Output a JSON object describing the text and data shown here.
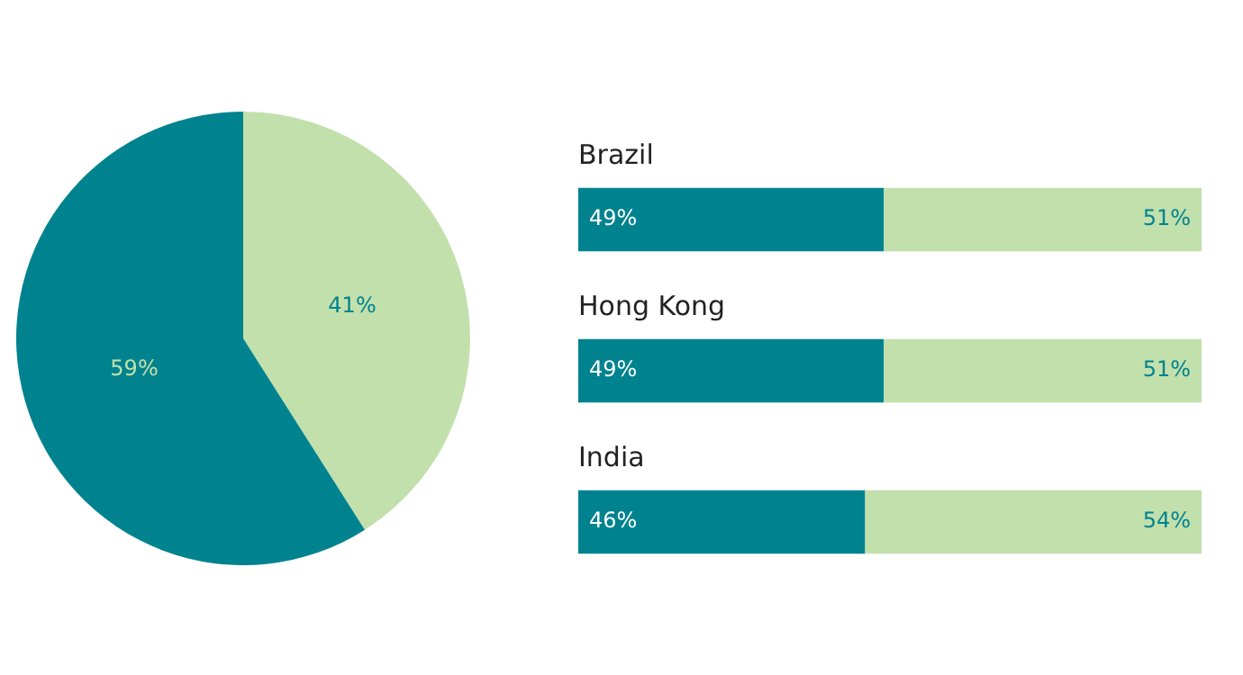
{
  "chart_data": [
    {
      "type": "pie",
      "categories": [
        null,
        null
      ],
      "values": [
        41,
        59
      ],
      "colors": [
        "#c2e0ac",
        "#00838f"
      ],
      "value_labels": [
        "41%",
        "59%"
      ],
      "legend": false
    },
    {
      "type": "bar",
      "orientation": "horizontal",
      "stacked": true,
      "categories": [
        "Brazil",
        "Hong Kong",
        "India"
      ],
      "xlim": [
        0,
        100
      ],
      "tick_labels": false,
      "legend": false,
      "series": [
        {
          "color": "#00838f",
          "values": [
            49,
            49,
            46
          ],
          "value_labels": [
            "49%",
            "49%",
            "46%"
          ]
        },
        {
          "color": "#c2e0ac",
          "values": [
            51,
            51,
            54
          ],
          "value_labels": [
            "51%",
            "51%",
            "54%"
          ]
        }
      ]
    }
  ]
}
